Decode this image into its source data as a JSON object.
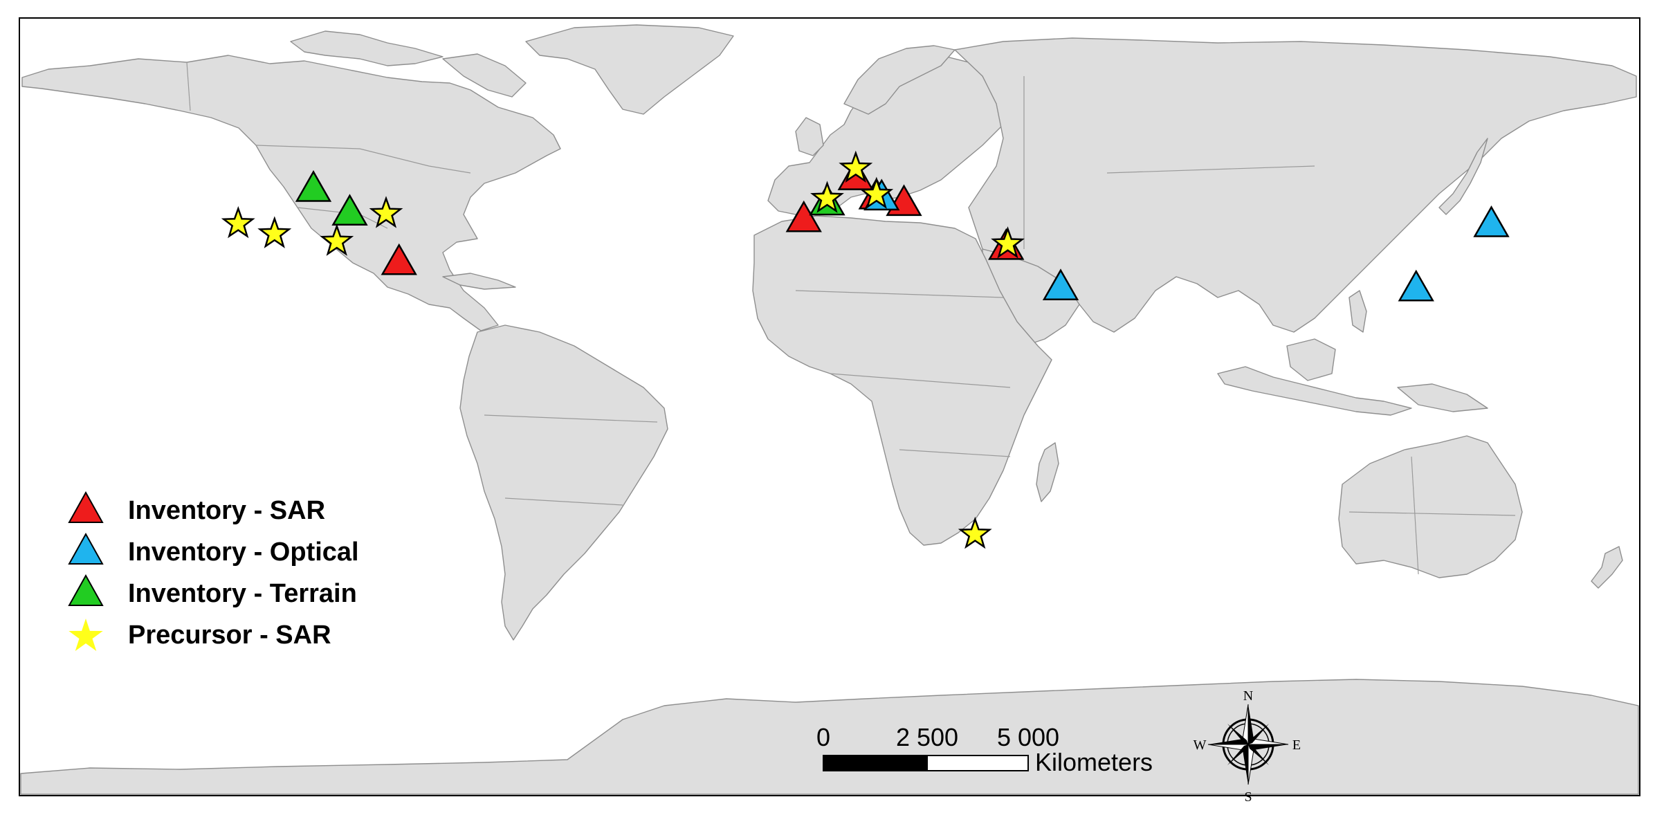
{
  "legend": {
    "items": [
      {
        "label": "Inventory - SAR",
        "marker": "triangle",
        "color": "#ee1c1c"
      },
      {
        "label": "Inventory - Optical",
        "marker": "triangle",
        "color": "#1fb4ee"
      },
      {
        "label": "Inventory - Terrain",
        "marker": "triangle",
        "color": "#22cc22"
      },
      {
        "label": "Precursor - SAR",
        "marker": "star",
        "color": "#ffff1a"
      }
    ]
  },
  "scale_bar": {
    "ticks": [
      "0",
      "2 500",
      "5 000"
    ],
    "unit": "Kilometers"
  },
  "compass": {
    "n": "N",
    "s": "S",
    "e": "E",
    "w": "W",
    "icon": "compass-rose-icon"
  },
  "markers": [
    {
      "type": "Inventory - SAR",
      "lon": -3.5,
      "lat": 37.5
    },
    {
      "type": "Inventory - SAR",
      "lon": 6.5,
      "lat": 45.8
    },
    {
      "type": "Inventory - SAR",
      "lon": 15.8,
      "lat": 40.7
    },
    {
      "type": "Inventory - SAR",
      "lon": 35.5,
      "lat": 32.0
    },
    {
      "type": "Inventory - SAR",
      "lon": -81.5,
      "lat": 29.0
    },
    {
      "type": "Inventory - SAR",
      "lon": 10.5,
      "lat": 42.0
    },
    {
      "type": "Inventory - Optical",
      "lon": 11.5,
      "lat": 41.8
    },
    {
      "type": "Inventory - Optical",
      "lon": 46.0,
      "lat": 24.0
    },
    {
      "type": "Inventory - Optical",
      "lon": 114.5,
      "lat": 23.8
    },
    {
      "type": "Inventory - Optical",
      "lon": 129.0,
      "lat": 36.5
    },
    {
      "type": "Inventory - Terrain",
      "lon": -98.0,
      "lat": 43.5
    },
    {
      "type": "Inventory - Terrain",
      "lon": -91.0,
      "lat": 38.8
    },
    {
      "type": "Inventory - Terrain",
      "lon": 1.0,
      "lat": 40.8
    },
    {
      "type": "Precursor - SAR",
      "lon": -112.5,
      "lat": 36.5
    },
    {
      "type": "Precursor - SAR",
      "lon": -105.5,
      "lat": 34.5
    },
    {
      "type": "Precursor - SAR",
      "lon": -93.5,
      "lat": 33.0
    },
    {
      "type": "Precursor - SAR",
      "lon": -84.0,
      "lat": 38.5
    },
    {
      "type": "Precursor - SAR",
      "lon": 1.0,
      "lat": 41.5
    },
    {
      "type": "Precursor - SAR",
      "lon": 6.5,
      "lat": 47.5
    },
    {
      "type": "Precursor - SAR",
      "lon": 10.5,
      "lat": 42.3
    },
    {
      "type": "Precursor - SAR",
      "lon": 35.8,
      "lat": 32.5
    },
    {
      "type": "Precursor - SAR",
      "lon": 29.5,
      "lat": -25.0
    }
  ]
}
